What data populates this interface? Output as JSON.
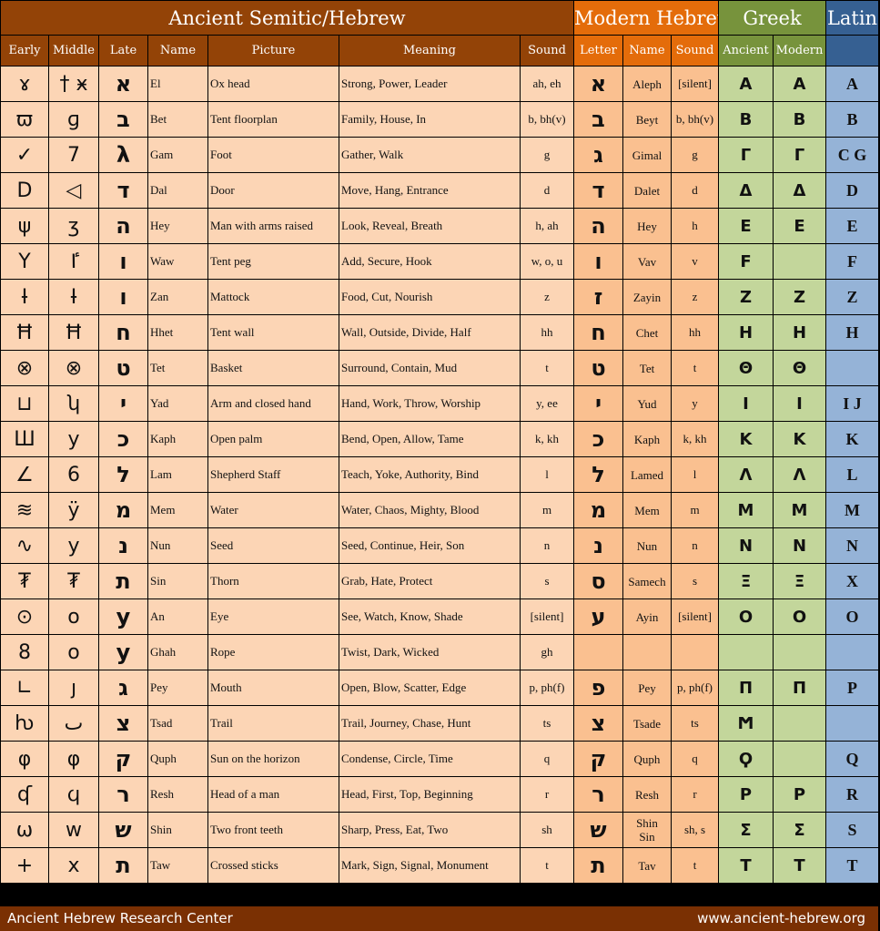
{
  "header": {
    "ancient": "Ancient Semitic/Hebrew",
    "modern": "Modern Hebrew",
    "greek": "Greek",
    "latin": "Latin"
  },
  "columns": {
    "early": "Early",
    "middle": "Middle",
    "late": "Late",
    "name": "Name",
    "picture": "Picture",
    "meaning": "Meaning",
    "sound": "Sound",
    "letter": "Letter",
    "mname": "Name",
    "msound": "Sound",
    "gancient": "Ancient",
    "gmodern": "Modern"
  },
  "colors": {
    "ancient_header": "#934307",
    "modern_header": "#e46c0a",
    "greek_header": "#77933c",
    "latin_header": "#366092",
    "ancient_cell": "#fcd5b5",
    "modern_cell": "#fac090",
    "greek_cell": "#c3d69b",
    "latin_cell": "#95b3d7"
  },
  "rows": [
    {
      "early": "ɤ",
      "middle": "† ӿ",
      "late": "א",
      "name": "El",
      "picture": "Ox head",
      "meaning": "Strong, Power, Leader",
      "sound": "ah, eh",
      "letter": "א",
      "mname": "Aleph",
      "msound": "[silent]",
      "gancient": "A",
      "gmodern": "A",
      "latin": "A"
    },
    {
      "early": "ϖ",
      "middle": "ɡ",
      "late": "ב",
      "name": "Bet",
      "picture": "Tent floorplan",
      "meaning": "Family, House, In",
      "sound": "b, bh(v)",
      "letter": "ב",
      "mname": "Beyt",
      "msound": "b, bh(v)",
      "gancient": "B",
      "gmodern": "B",
      "latin": "B"
    },
    {
      "early": "✓",
      "middle": "7",
      "late": "λ",
      "name": "Gam",
      "picture": "Foot",
      "meaning": "Gather, Walk",
      "sound": "g",
      "letter": "ג",
      "mname": "Gimal",
      "msound": "g",
      "gancient": "Γ",
      "gmodern": "Γ",
      "latin": "C G"
    },
    {
      "early": "D",
      "middle": "◁",
      "late": "ד",
      "name": "Dal",
      "picture": "Door",
      "meaning": "Move, Hang, Entrance",
      "sound": "d",
      "letter": "ד",
      "mname": "Dalet",
      "msound": "d",
      "gancient": "Δ",
      "gmodern": "Δ",
      "latin": "D"
    },
    {
      "early": "ψ",
      "middle": "ʒ",
      "late": "ה",
      "name": "Hey",
      "picture": "Man with arms raised",
      "meaning": "Look, Reveal, Breath",
      "sound": "h, ah",
      "letter": "ה",
      "mname": "Hey",
      "msound": "h",
      "gancient": "E",
      "gmodern": "E",
      "latin": "E"
    },
    {
      "early": "Y",
      "middle": "ٵ",
      "late": "ו",
      "name": "Waw",
      "picture": "Tent peg",
      "meaning": "Add, Secure, Hook",
      "sound": "w, o, u",
      "letter": "ו",
      "mname": "Vav",
      "msound": "v",
      "gancient": "Ϝ",
      "gmodern": "",
      "latin": "F"
    },
    {
      "early": "Ɨ",
      "middle": "Ɨ",
      "late": "ו",
      "name": "Zan",
      "picture": "Mattock",
      "meaning": "Food, Cut, Nourish",
      "sound": "z",
      "letter": "ז",
      "mname": "Zayin",
      "msound": "z",
      "gancient": "Z",
      "gmodern": "Z",
      "latin": "Z"
    },
    {
      "early": "Ħ",
      "middle": "Ħ",
      "late": "ח",
      "name": "Hhet",
      "picture": "Tent wall",
      "meaning": "Wall, Outside, Divide, Half",
      "sound": "hh",
      "letter": "ח",
      "mname": "Chet",
      "msound": "hh",
      "gancient": "H",
      "gmodern": "H",
      "latin": "H"
    },
    {
      "early": "⊗",
      "middle": "⊗",
      "late": "ט",
      "name": "Tet",
      "picture": "Basket",
      "meaning": "Surround, Contain, Mud",
      "sound": "t",
      "letter": "ט",
      "mname": "Tet",
      "msound": "t",
      "gancient": "Θ",
      "gmodern": "Θ",
      "latin": ""
    },
    {
      "early": "⊔",
      "middle": "ʮ",
      "late": "י",
      "name": "Yad",
      "picture": "Arm and closed hand",
      "meaning": "Hand, Work, Throw, Worship",
      "sound": "y, ee",
      "letter": "י",
      "mname": "Yud",
      "msound": "y",
      "gancient": "I",
      "gmodern": "I",
      "latin": "I J"
    },
    {
      "early": "Ш",
      "middle": "y",
      "late": "כ",
      "name": "Kaph",
      "picture": "Open palm",
      "meaning": "Bend, Open, Allow, Tame",
      "sound": "k, kh",
      "letter": "כ",
      "mname": "Kaph",
      "msound": "k, kh",
      "gancient": "K",
      "gmodern": "K",
      "latin": "K"
    },
    {
      "early": "∠",
      "middle": "6",
      "late": "ל",
      "name": "Lam",
      "picture": "Shepherd Staff",
      "meaning": "Teach, Yoke, Authority, Bind",
      "sound": "l",
      "letter": "ל",
      "mname": "Lamed",
      "msound": "l",
      "gancient": "Λ",
      "gmodern": "Λ",
      "latin": "L"
    },
    {
      "early": "≋",
      "middle": "ÿ",
      "late": "מ",
      "name": "Mem",
      "picture": "Water",
      "meaning": "Water, Chaos, Mighty, Blood",
      "sound": "m",
      "letter": "מ",
      "mname": "Mem",
      "msound": "m",
      "gancient": "M",
      "gmodern": "M",
      "latin": "M"
    },
    {
      "early": "∿",
      "middle": "y",
      "late": "נ",
      "name": "Nun",
      "picture": "Seed",
      "meaning": "Seed, Continue, Heir, Son",
      "sound": "n",
      "letter": "נ",
      "mname": "Nun",
      "msound": "n",
      "gancient": "N",
      "gmodern": "N",
      "latin": "N"
    },
    {
      "early": "₮",
      "middle": "₮",
      "late": "ת",
      "name": "Sin",
      "picture": "Thorn",
      "meaning": "Grab, Hate, Protect",
      "sound": "s",
      "letter": "ס",
      "mname": "Samech",
      "msound": "s",
      "gancient": "Ξ",
      "gmodern": "Ξ",
      "latin": "X"
    },
    {
      "early": "⊙",
      "middle": "o",
      "late": "y",
      "name": "An",
      "picture": "Eye",
      "meaning": "See, Watch, Know, Shade",
      "sound": "[silent]",
      "letter": "ע",
      "mname": "Ayin",
      "msound": "[silent]",
      "gancient": "O",
      "gmodern": "O",
      "latin": "O"
    },
    {
      "early": "8",
      "middle": "o",
      "late": "y",
      "name": "Ghah",
      "picture": "Rope",
      "meaning": "Twist, Dark, Wicked",
      "sound": "gh",
      "letter": "",
      "mname": "",
      "msound": "",
      "gancient": "",
      "gmodern": "",
      "latin": ""
    },
    {
      "early": "∟",
      "middle": "ȷ",
      "late": "ג",
      "name": "Pey",
      "picture": "Mouth",
      "meaning": "Open, Blow, Scatter, Edge",
      "sound": "p, ph(f)",
      "letter": "פ",
      "mname": "Pey",
      "msound": "p, ph(f)",
      "gancient": "Π",
      "gmodern": "Π",
      "latin": "P"
    },
    {
      "early": "ƕ",
      "middle": "ٮ",
      "late": "צ",
      "name": "Tsad",
      "picture": "Trail",
      "meaning": "Trail, Journey, Chase, Hunt",
      "sound": "ts",
      "letter": "צ",
      "mname": "Tsade",
      "msound": "ts",
      "gancient": "Ϻ",
      "gmodern": "",
      "latin": ""
    },
    {
      "early": "φ",
      "middle": "φ",
      "late": "ק",
      "name": "Quph",
      "picture": "Sun on the horizon",
      "meaning": "Condense, Circle, Time",
      "sound": "q",
      "letter": "ק",
      "mname": "Quph",
      "msound": "q",
      "gancient": "Ϙ",
      "gmodern": "",
      "latin": "Q"
    },
    {
      "early": "ʠ",
      "middle": "ϥ",
      "late": "ר",
      "name": "Resh",
      "picture": "Head of a man",
      "meaning": "Head, First, Top, Beginning",
      "sound": "r",
      "letter": "ר",
      "mname": "Resh",
      "msound": "r",
      "gancient": "P",
      "gmodern": "P",
      "latin": "R"
    },
    {
      "early": "ω",
      "middle": "w",
      "late": "ש",
      "name": "Shin",
      "picture": "Two front teeth",
      "meaning": "Sharp, Press, Eat, Two",
      "sound": "sh",
      "letter": "ש",
      "mname": "Shin\nSin",
      "msound": "sh, s",
      "gancient": "Σ",
      "gmodern": "Σ",
      "latin": "S"
    },
    {
      "early": "+",
      "middle": "x",
      "late": "ת",
      "name": "Taw",
      "picture": "Crossed sticks",
      "meaning": "Mark, Sign, Signal, Monument",
      "sound": "t",
      "letter": "ת",
      "mname": "Tav",
      "msound": "t",
      "gancient": "T",
      "gmodern": "T",
      "latin": "T"
    }
  ],
  "footer": {
    "left": "Ancient Hebrew Research Center",
    "right": "www.ancient-hebrew.org"
  }
}
